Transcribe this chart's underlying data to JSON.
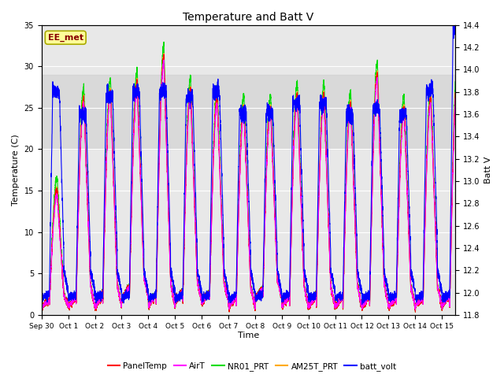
{
  "title": "Temperature and Batt V",
  "xlabel": "Time",
  "ylabel_left": "Temperature (C)",
  "ylabel_right": "Batt V",
  "ylim_left": [
    0,
    35
  ],
  "ylim_right": [
    11.8,
    14.4
  ],
  "xlim": [
    0,
    15.5
  ],
  "xtick_labels": [
    "Sep 30",
    "Oct 1",
    "Oct 2",
    "Oct 3",
    "Oct 4",
    "Oct 5",
    "Oct 6",
    "Oct 7",
    "Oct 8",
    "Oct 9",
    "Oct 10",
    "Oct 11",
    "Oct 12",
    "Oct 13",
    "Oct 14",
    "Oct 15"
  ],
  "xtick_positions": [
    0,
    1,
    2,
    3,
    4,
    5,
    6,
    7,
    8,
    9,
    10,
    11,
    12,
    13,
    14,
    15
  ],
  "yticks_left": [
    0,
    5,
    10,
    15,
    20,
    25,
    30,
    35
  ],
  "yticks_right": [
    11.8,
    12.0,
    12.2,
    12.4,
    12.6,
    12.8,
    13.0,
    13.2,
    13.4,
    13.6,
    13.8,
    14.0,
    14.2,
    14.4
  ],
  "shaded_band": [
    20,
    29
  ],
  "series_colors": {
    "PanelTemp": "#ff0000",
    "AirT": "#ff00ff",
    "NR01_PRT": "#00dd00",
    "AM25T_PRT": "#ffaa00",
    "batt_volt": "#0000ff"
  },
  "ee_met_label": "EE_met",
  "ee_met_color": "#880000",
  "ee_met_bg": "#ffff99",
  "ee_met_edge": "#aaaa00",
  "fig_bg": "#ffffff",
  "plot_bg": "#e8e8e8",
  "grid_color": "#ffffff",
  "figsize": [
    6.4,
    4.8
  ],
  "dpi": 100,
  "daily_peaks_temp": [
    15,
    26,
    27,
    28,
    31,
    27,
    26,
    25,
    25,
    26.5,
    26.5,
    25.5,
    29,
    25,
    26,
    29,
    33
  ],
  "daily_mins_temp": [
    1,
    1,
    1,
    2,
    1,
    1.5,
    1.5,
    1,
    2,
    1,
    1,
    1,
    1,
    1,
    1,
    1
  ],
  "batt_day_peaks": [
    13.8,
    13.6,
    13.75,
    13.8,
    13.8,
    13.75,
    13.8,
    13.6,
    13.6,
    13.7,
    13.7,
    13.6,
    13.65,
    13.6,
    13.8,
    14.35
  ],
  "batt_night_min": 12.0
}
